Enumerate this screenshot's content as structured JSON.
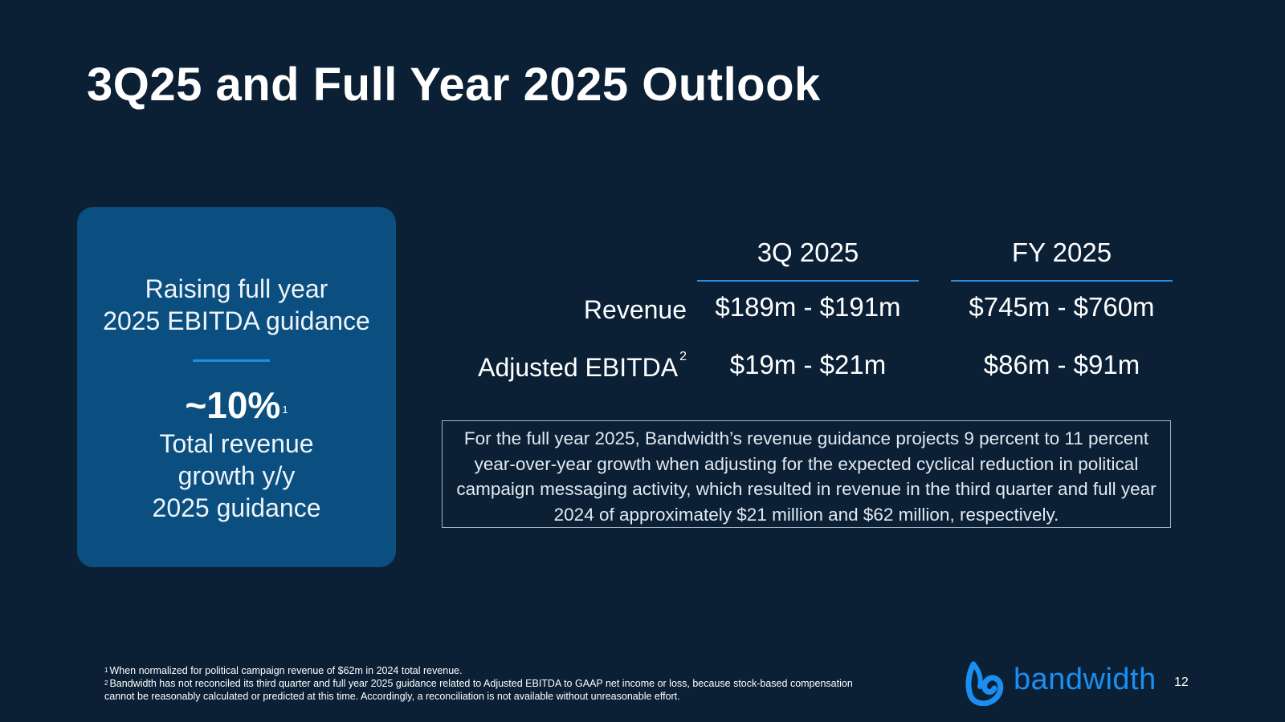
{
  "slide": {
    "title": "3Q25 and Full Year 2025 Outlook",
    "page_number": "12"
  },
  "callout": {
    "heading_line1": "Raising full year",
    "heading_line2": "2025 EBITDA guidance",
    "metric": "~10%",
    "metric_footnote": "1",
    "desc_line1": "Total revenue",
    "desc_line2": "growth y/y",
    "desc_line3": "2025 guidance",
    "colors": {
      "box": "#0b4f80",
      "divider": "#1f8ee6"
    }
  },
  "guidance_table": {
    "columns": [
      "3Q 2025",
      "FY 2025"
    ],
    "rows": [
      {
        "label": "Revenue",
        "footnote": "",
        "values": [
          "$189m - $191m",
          "$745m - $760m"
        ]
      },
      {
        "label": "Adjusted EBITDA",
        "footnote": "2",
        "values": [
          "$19m - $21m",
          "$86m - $91m"
        ]
      }
    ]
  },
  "note": "For the full year 2025, Bandwidth’s revenue guidance projects 9 percent to 11 percent year-over-year growth when adjusting for the expected cyclical reduction in political campaign messaging activity, which resulted in revenue in the third quarter and full year 2024 of approximately $21 million and $62 million, respectively.",
  "footnotes": [
    {
      "marker": "1",
      "text": "When normalized for political campaign revenue of $62m in 2024 total revenue."
    },
    {
      "marker": "2",
      "text": "Bandwidth has not reconciled its third quarter and full year 2025 guidance related to Adjusted EBITDA to GAAP net income or loss, because stock-based compensation cannot be reasonably calculated or predicted at this time. Accordingly, a reconciliation is not available without unreasonable effort."
    }
  ],
  "logo": {
    "text": "bandwidth",
    "icon": "bandwidth-logo-icon",
    "color": "#1c8ef0"
  },
  "theme": {
    "background": "#0b2035",
    "accent_line": "#2a8fe0"
  }
}
